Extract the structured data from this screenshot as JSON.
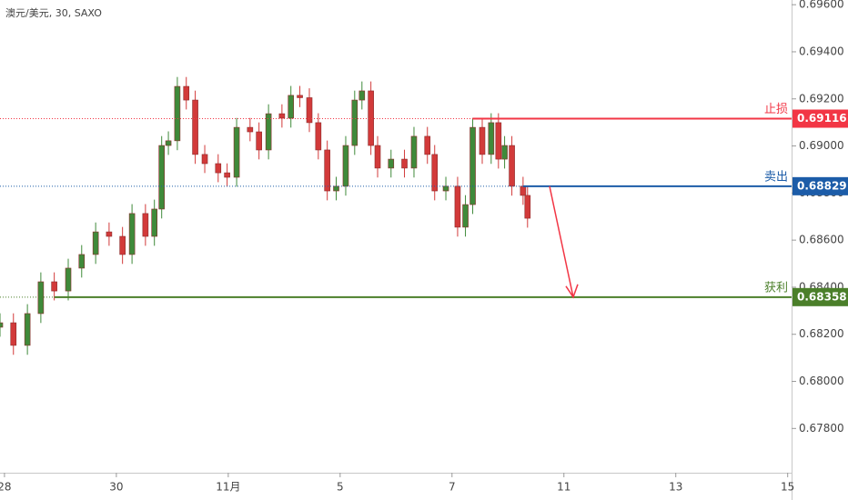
{
  "chart_data": {
    "type": "candlestick",
    "title": "澳元/美元, 30, SAXO",
    "xlim": [
      -0.08,
      14.07
    ],
    "ylim": [
      0.67612,
      0.6962
    ],
    "xticks": [
      {
        "value": 0,
        "label": "28"
      },
      {
        "value": 2,
        "label": "30"
      },
      {
        "value": 4,
        "label": "11月"
      },
      {
        "value": 6,
        "label": "5"
      },
      {
        "value": 8,
        "label": "7"
      },
      {
        "value": 10,
        "label": "11"
      },
      {
        "value": 12,
        "label": "13"
      },
      {
        "value": 14,
        "label": "15"
      }
    ],
    "yticks": [
      {
        "value": 0.678,
        "label": "0.67800"
      },
      {
        "value": 0.68,
        "label": "0.68000"
      },
      {
        "value": 0.682,
        "label": "0.68200"
      },
      {
        "value": 0.684,
        "label": "0.68400"
      },
      {
        "value": 0.686,
        "label": "0.68600"
      },
      {
        "value": 0.688,
        "label": "0.68800"
      },
      {
        "value": 0.69,
        "label": "0.69000"
      },
      {
        "value": 0.692,
        "label": "0.69200"
      },
      {
        "value": 0.694,
        "label": "0.69400"
      },
      {
        "value": 0.696,
        "label": "0.69600"
      }
    ],
    "up_color": "#3f8a3a",
    "down_color": "#d23a3a",
    "x": [
      -0.08,
      0.16,
      0.41,
      0.65,
      0.89,
      1.14,
      1.38,
      1.63,
      1.87,
      2.11,
      2.28,
      2.52,
      2.68,
      2.81,
      2.93,
      3.09,
      3.25,
      3.41,
      3.58,
      3.82,
      3.98,
      4.15,
      4.39,
      4.55,
      4.72,
      4.96,
      5.12,
      5.28,
      5.45,
      5.61,
      5.77,
      5.93,
      6.1,
      6.26,
      6.39,
      6.55,
      6.67,
      6.91,
      7.15,
      7.32,
      7.56,
      7.69,
      7.89,
      8.1,
      8.24,
      8.37,
      8.54,
      8.7,
      8.83,
      8.94,
      9.07,
      9.27,
      9.35
    ],
    "open": [
      0.6823,
      0.68249,
      0.68153,
      0.68288,
      0.68423,
      0.68384,
      0.68481,
      0.68539,
      0.68635,
      0.68616,
      0.68539,
      0.68713,
      0.68616,
      0.68732,
      0.69002,
      0.69022,
      0.69253,
      0.69195,
      0.68964,
      0.68925,
      0.68886,
      0.68867,
      0.69079,
      0.6906,
      0.68983,
      0.69137,
      0.69118,
      0.69215,
      0.69205,
      0.69099,
      0.68983,
      0.68809,
      0.68829,
      0.69002,
      0.69195,
      0.69234,
      0.69002,
      0.68906,
      0.68944,
      0.68906,
      0.69041,
      0.68964,
      0.68809,
      0.68829,
      0.68655,
      0.68751,
      0.69079,
      0.68964,
      0.69099,
      0.68944,
      0.69002,
      0.68829,
      0.6879
    ],
    "high": [
      0.68289,
      0.68289,
      0.68328,
      0.68463,
      0.68463,
      0.68521,
      0.68579,
      0.68675,
      0.68675,
      0.68656,
      0.68753,
      0.68753,
      0.68772,
      0.69042,
      0.69062,
      0.69293,
      0.69293,
      0.69235,
      0.69004,
      0.68965,
      0.68926,
      0.69119,
      0.69119,
      0.691,
      0.69177,
      0.69177,
      0.69255,
      0.69255,
      0.69245,
      0.69139,
      0.69023,
      0.68869,
      0.69042,
      0.69235,
      0.69274,
      0.69274,
      0.69042,
      0.68984,
      0.68984,
      0.69081,
      0.69081,
      0.69004,
      0.68869,
      0.68869,
      0.68791,
      0.69119,
      0.69119,
      0.69139,
      0.69139,
      0.69042,
      0.69042,
      0.68869,
      0.6883
    ],
    "low": [
      0.6819,
      0.68113,
      0.68113,
      0.68248,
      0.68344,
      0.68344,
      0.68441,
      0.68499,
      0.68576,
      0.68499,
      0.68499,
      0.68576,
      0.68576,
      0.68692,
      0.68962,
      0.68982,
      0.69155,
      0.68924,
      0.68885,
      0.68846,
      0.68827,
      0.68827,
      0.6902,
      0.68943,
      0.68943,
      0.69078,
      0.69078,
      0.69165,
      0.69059,
      0.68943,
      0.68769,
      0.68769,
      0.68789,
      0.68962,
      0.69155,
      0.68962,
      0.68866,
      0.68866,
      0.68866,
      0.68866,
      0.68924,
      0.68769,
      0.68769,
      0.68615,
      0.68615,
      0.68711,
      0.68924,
      0.68924,
      0.68904,
      0.68904,
      0.68789,
      0.6875,
      0.68653
    ],
    "close": [
      0.68249,
      0.68153,
      0.68288,
      0.68423,
      0.68384,
      0.68481,
      0.68539,
      0.68635,
      0.68616,
      0.68539,
      0.68713,
      0.68616,
      0.68732,
      0.69002,
      0.69022,
      0.69253,
      0.69195,
      0.68964,
      0.68925,
      0.68886,
      0.68867,
      0.69079,
      0.6906,
      0.68983,
      0.69137,
      0.69118,
      0.69215,
      0.69205,
      0.69099,
      0.68983,
      0.68809,
      0.68829,
      0.69002,
      0.69195,
      0.69234,
      0.69002,
      0.68906,
      0.68944,
      0.68906,
      0.69041,
      0.68964,
      0.68809,
      0.68829,
      0.68655,
      0.68751,
      0.69079,
      0.68964,
      0.69099,
      0.68944,
      0.69002,
      0.68829,
      0.6879,
      0.68693
    ],
    "levels": [
      {
        "name": "止损",
        "value": 0.69116,
        "label": "0.69116",
        "x_start": 8.37,
        "color": "#f23645"
      },
      {
        "name": "卖出",
        "value": 0.68829,
        "label": "0.68829",
        "x_start": 9.27,
        "color": "#1c5ca8"
      },
      {
        "name": "获利",
        "value": 0.68358,
        "label": "0.68358",
        "x_start": 0.89,
        "color": "#4b7f2a"
      }
    ]
  }
}
